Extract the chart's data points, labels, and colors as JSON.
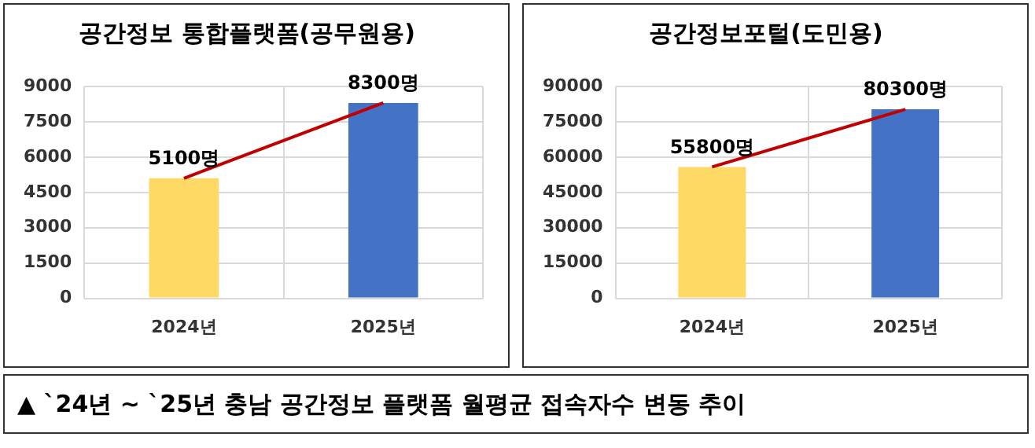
{
  "chart_data": [
    {
      "type": "bar",
      "title": "공간정보 통합플랫폼(공무원용)",
      "categories": [
        "2024년",
        "2025년"
      ],
      "ylim": [
        0,
        9000
      ],
      "yticks": [
        0,
        1500,
        3000,
        4500,
        6000,
        7500,
        9000
      ],
      "grid": true,
      "legend": false,
      "series": [
        {
          "colors": [
            "#ffd966",
            "#4472c4"
          ],
          "values": [
            5100,
            8300
          ],
          "value_labels": [
            "5100명",
            "8300명"
          ]
        },
        {
          "type": "line",
          "color": "#c00000",
          "values": [
            5100,
            8300
          ]
        }
      ],
      "annotations": [
        "▲ `24년 ~ `25년 충남 공간정보 플랫폼 월평균 접속자수 변동 추이"
      ]
    },
    {
      "type": "bar",
      "title": "공간정보포털(도민용)",
      "categories": [
        "2024년",
        "2025년"
      ],
      "ylim": [
        0,
        90000
      ],
      "yticks": [
        0,
        15000,
        30000,
        45000,
        60000,
        75000,
        90000
      ],
      "grid": true,
      "legend": false,
      "series": [
        {
          "colors": [
            "#ffd966",
            "#4472c4"
          ],
          "values": [
            55800,
            80300
          ],
          "value_labels": [
            "55800명",
            "80300명"
          ]
        },
        {
          "type": "line",
          "color": "#c00000",
          "values": [
            55800,
            80300
          ]
        }
      ]
    }
  ]
}
